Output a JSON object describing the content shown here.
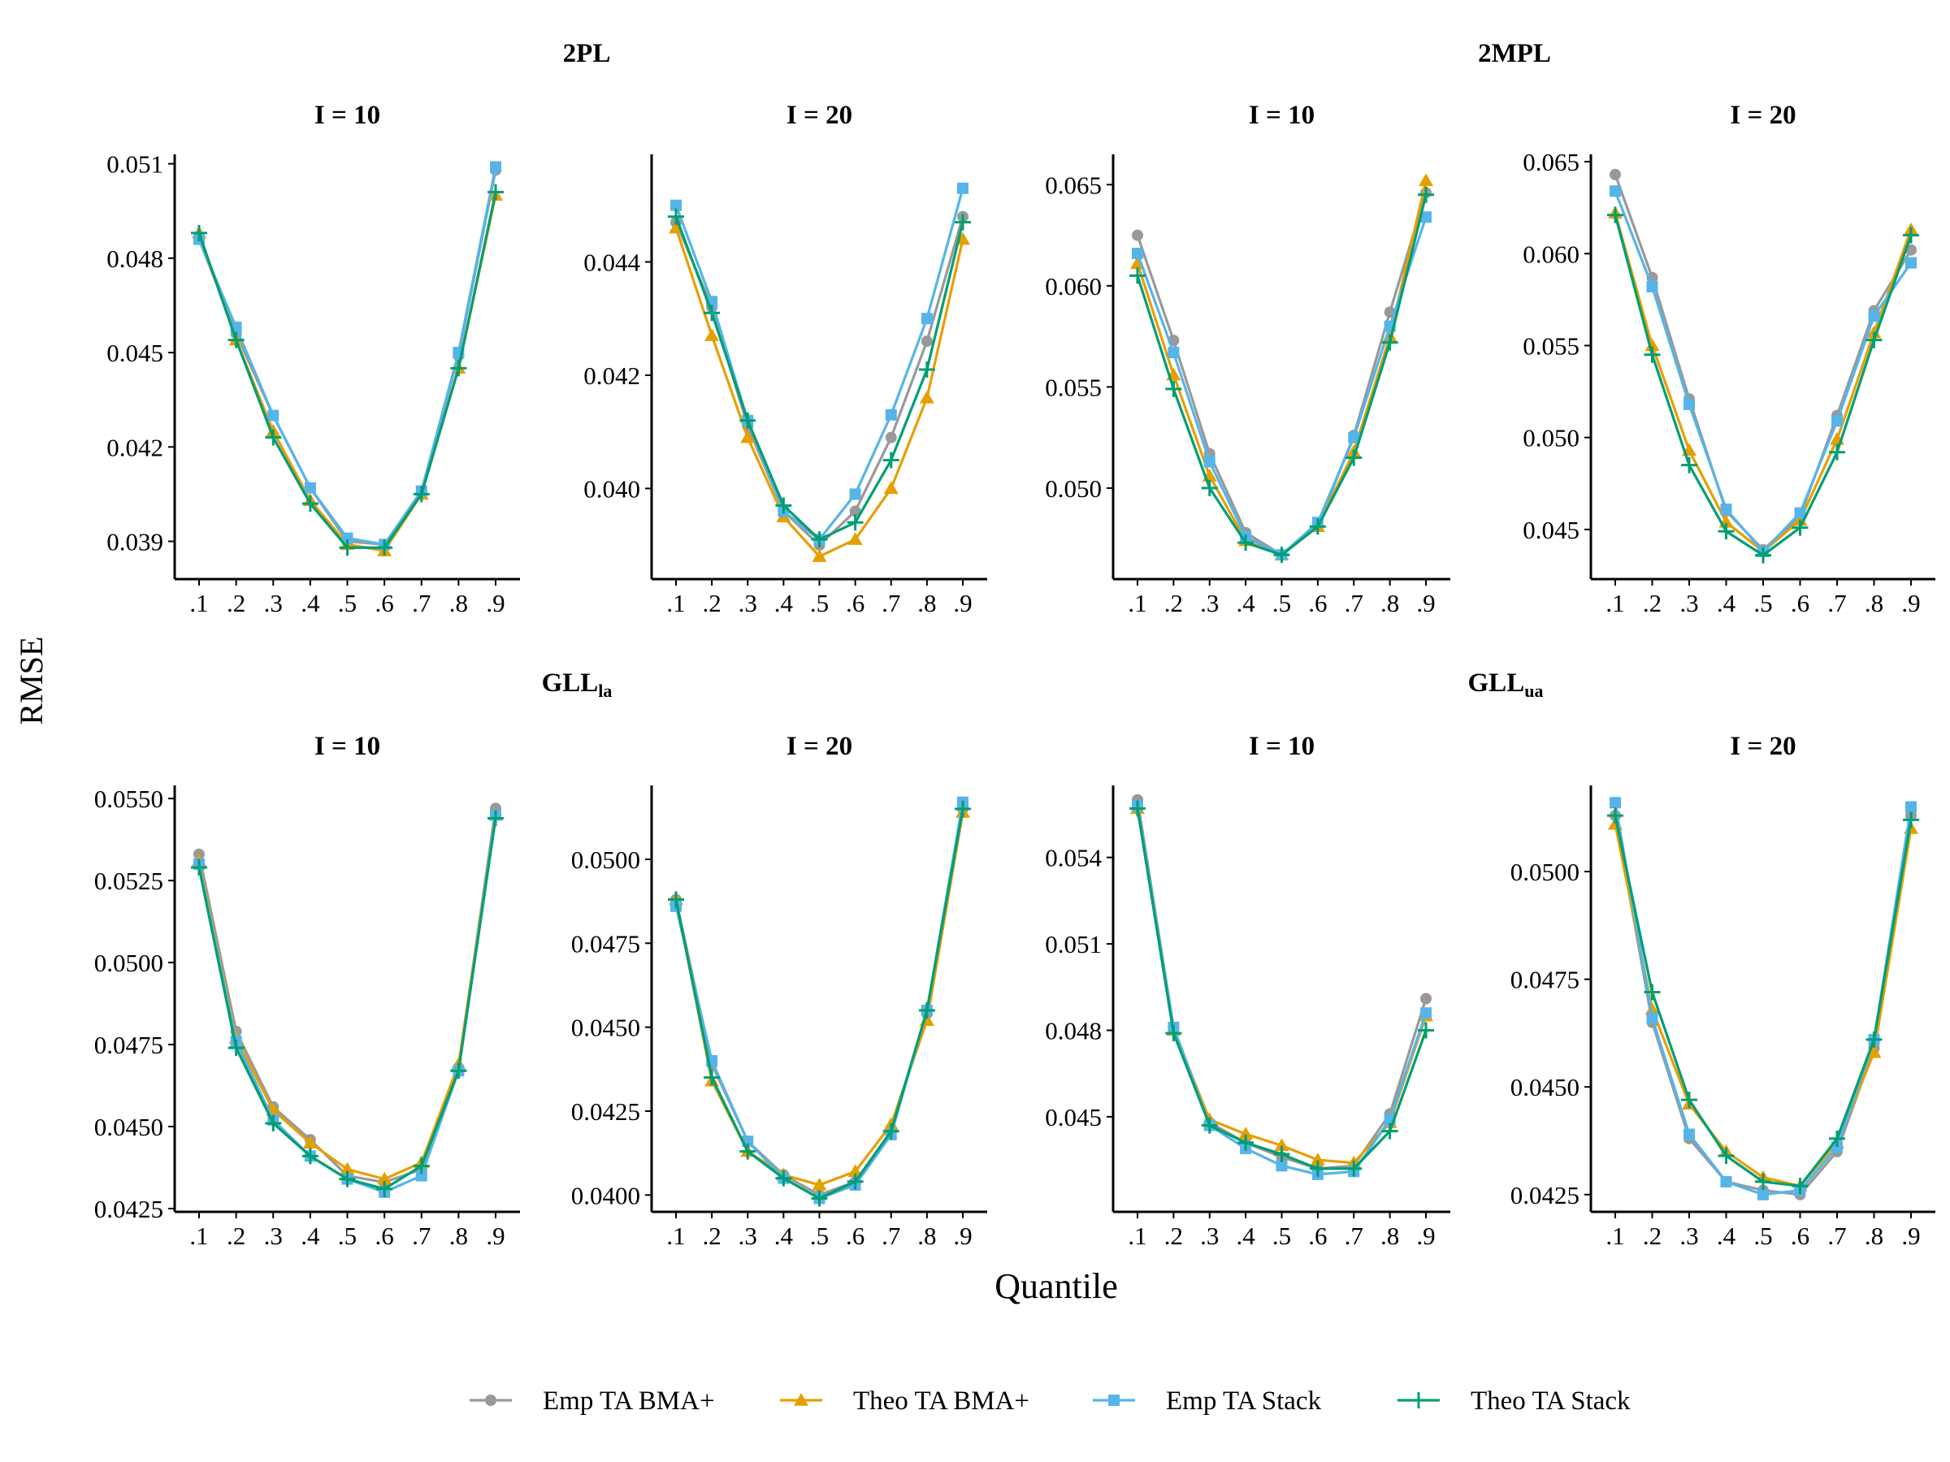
{
  "figure": {
    "ylabel": "RMSE",
    "xlabel": "Quantile",
    "group_titles": [
      {
        "main": "2PL",
        "sub": ""
      },
      {
        "main": "2MPL",
        "sub": ""
      },
      {
        "main": "GLL",
        "sub": "la"
      },
      {
        "main": "GLL",
        "sub": "ua"
      }
    ],
    "legend": [
      {
        "label": "Emp TA BMA+",
        "color": "#999999",
        "marker": "circle"
      },
      {
        "label": "Theo TA BMA+",
        "color": "#E69F00",
        "marker": "triangle"
      },
      {
        "label": "Emp TA Stack",
        "color": "#56B4E9",
        "marker": "square"
      },
      {
        "label": "Theo TA Stack",
        "color": "#009E73",
        "marker": "plus"
      }
    ]
  },
  "chart_data": [
    {
      "type": "line",
      "group": "2PL",
      "title": "I = 10",
      "categories": [
        ".1",
        ".2",
        ".3",
        ".4",
        ".5",
        ".6",
        ".7",
        ".8",
        ".9"
      ],
      "ylim": [
        0.0378,
        0.0513
      ],
      "yticks": [
        "0.039",
        "0.042",
        "0.045",
        "0.048",
        "0.051"
      ],
      "series": [
        {
          "name": "Emp TA BMA+",
          "values": [
            0.0486,
            0.0456,
            0.043,
            0.0407,
            0.039,
            0.0389,
            0.0406,
            0.0449,
            0.0508
          ]
        },
        {
          "name": "Theo TA BMA+",
          "values": [
            0.0488,
            0.0454,
            0.0425,
            0.0403,
            0.0389,
            0.0387,
            0.0405,
            0.0445,
            0.05
          ]
        },
        {
          "name": "Emp TA Stack",
          "values": [
            0.0486,
            0.0458,
            0.043,
            0.0407,
            0.0391,
            0.0389,
            0.0406,
            0.045,
            0.0509
          ]
        },
        {
          "name": "Theo TA Stack",
          "values": [
            0.0488,
            0.0454,
            0.0423,
            0.0402,
            0.0388,
            0.0388,
            0.0405,
            0.0445,
            0.0501
          ]
        }
      ]
    },
    {
      "type": "line",
      "group": "2PL",
      "title": "I = 20",
      "categories": [
        ".1",
        ".2",
        ".3",
        ".4",
        ".5",
        ".6",
        ".7",
        ".8",
        ".9"
      ],
      "ylim": [
        0.0384,
        0.0459
      ],
      "yticks": [
        "0.040",
        "0.042",
        "0.044"
      ],
      "series": [
        {
          "name": "Emp TA BMA+",
          "values": [
            0.0447,
            0.0432,
            0.0411,
            0.0396,
            0.039,
            0.0396,
            0.0409,
            0.0426,
            0.0448
          ]
        },
        {
          "name": "Theo TA BMA+",
          "values": [
            0.0446,
            0.0427,
            0.0409,
            0.0395,
            0.0388,
            0.0391,
            0.04,
            0.0416,
            0.0444
          ]
        },
        {
          "name": "Emp TA Stack",
          "values": [
            0.045,
            0.0433,
            0.0412,
            0.0396,
            0.0391,
            0.0399,
            0.0413,
            0.043,
            0.0453
          ]
        },
        {
          "name": "Theo TA Stack",
          "values": [
            0.0448,
            0.0431,
            0.0412,
            0.0397,
            0.0391,
            0.0394,
            0.0405,
            0.0421,
            0.0447
          ]
        }
      ]
    },
    {
      "type": "line",
      "group": "2MPL",
      "title": "I = 10",
      "categories": [
        ".1",
        ".2",
        ".3",
        ".4",
        ".5",
        ".6",
        ".7",
        ".8",
        ".9"
      ],
      "ylim": [
        0.0455,
        0.0665
      ],
      "yticks": [
        "0.050",
        "0.055",
        "0.060",
        "0.065"
      ],
      "series": [
        {
          "name": "Emp TA BMA+",
          "values": [
            0.0625,
            0.0573,
            0.0517,
            0.0478,
            0.0467,
            0.0481,
            0.0526,
            0.0587,
            0.0646
          ]
        },
        {
          "name": "Theo TA BMA+",
          "values": [
            0.0611,
            0.0556,
            0.0506,
            0.0474,
            0.0467,
            0.0481,
            0.0518,
            0.0575,
            0.0652
          ]
        },
        {
          "name": "Emp TA Stack",
          "values": [
            0.0616,
            0.0567,
            0.0513,
            0.0476,
            0.0467,
            0.0483,
            0.0525,
            0.058,
            0.0634
          ]
        },
        {
          "name": "Theo TA Stack",
          "values": [
            0.0605,
            0.0549,
            0.05,
            0.0473,
            0.0467,
            0.0481,
            0.0515,
            0.0572,
            0.0645
          ]
        }
      ]
    },
    {
      "type": "line",
      "group": "2MPL",
      "title": "I = 20",
      "categories": [
        ".1",
        ".2",
        ".3",
        ".4",
        ".5",
        ".6",
        ".7",
        ".8",
        ".9"
      ],
      "ylim": [
        0.0423,
        0.0654
      ],
      "yticks": [
        "0.045",
        "0.050",
        "0.055",
        "0.060",
        "0.065"
      ],
      "series": [
        {
          "name": "Emp TA BMA+",
          "values": [
            0.0643,
            0.0587,
            0.0521,
            0.046,
            0.0439,
            0.0457,
            0.0512,
            0.0569,
            0.0602
          ]
        },
        {
          "name": "Theo TA BMA+",
          "values": [
            0.0622,
            0.055,
            0.0493,
            0.0454,
            0.0438,
            0.0455,
            0.0499,
            0.0557,
            0.0613
          ]
        },
        {
          "name": "Emp TA Stack",
          "values": [
            0.0634,
            0.0582,
            0.0518,
            0.0461,
            0.0438,
            0.0459,
            0.0509,
            0.0566,
            0.0595
          ]
        },
        {
          "name": "Theo TA Stack",
          "values": [
            0.0621,
            0.0545,
            0.0485,
            0.0449,
            0.0436,
            0.0451,
            0.0492,
            0.0553,
            0.061
          ]
        }
      ]
    },
    {
      "type": "line",
      "group": "GLL la",
      "title": "I = 10",
      "categories": [
        ".1",
        ".2",
        ".3",
        ".4",
        ".5",
        ".6",
        ".7",
        ".8",
        ".9"
      ],
      "ylim": [
        0.0424,
        0.0554
      ],
      "yticks": [
        "0.0425",
        "0.0450",
        "0.0475",
        "0.0500",
        "0.0525",
        "0.0550"
      ],
      "series": [
        {
          "name": "Emp TA BMA+",
          "values": [
            0.0533,
            0.0479,
            0.0456,
            0.0446,
            0.0435,
            0.0433,
            0.0437,
            0.0468,
            0.0547
          ]
        },
        {
          "name": "Theo TA BMA+",
          "values": [
            0.0531,
            0.0477,
            0.0455,
            0.0445,
            0.0437,
            0.0434,
            0.0439,
            0.0469,
            0.0545
          ]
        },
        {
          "name": "Emp TA Stack",
          "values": [
            0.053,
            0.0476,
            0.0452,
            0.0441,
            0.0434,
            0.043,
            0.0435,
            0.0467,
            0.0545
          ]
        },
        {
          "name": "Theo TA Stack",
          "values": [
            0.0529,
            0.0474,
            0.0451,
            0.0441,
            0.0434,
            0.0431,
            0.0438,
            0.0467,
            0.0544
          ]
        }
      ]
    },
    {
      "type": "line",
      "group": "GLL la",
      "title": "I = 20",
      "categories": [
        ".1",
        ".2",
        ".3",
        ".4",
        ".5",
        ".6",
        ".7",
        ".8",
        ".9"
      ],
      "ylim": [
        0.0395,
        0.0522
      ],
      "yticks": [
        "0.0400",
        "0.0425",
        "0.0450",
        "0.0475",
        "0.0500"
      ],
      "series": [
        {
          "name": "Emp TA BMA+",
          "values": [
            0.0488,
            0.0439,
            0.0416,
            0.0406,
            0.04,
            0.0404,
            0.0419,
            0.0454,
            0.0515
          ]
        },
        {
          "name": "Theo TA BMA+",
          "values": [
            0.0488,
            0.0434,
            0.0413,
            0.0406,
            0.0403,
            0.0407,
            0.0421,
            0.0452,
            0.0514
          ]
        },
        {
          "name": "Emp TA Stack",
          "values": [
            0.0486,
            0.044,
            0.0416,
            0.0405,
            0.0399,
            0.0403,
            0.0418,
            0.0455,
            0.0517
          ]
        },
        {
          "name": "Theo TA Stack",
          "values": [
            0.0488,
            0.0435,
            0.0413,
            0.0405,
            0.0399,
            0.0404,
            0.0419,
            0.0455,
            0.0515
          ]
        }
      ]
    },
    {
      "type": "line",
      "group": "GLL ua",
      "title": "I = 10",
      "categories": [
        ".1",
        ".2",
        ".3",
        ".4",
        ".5",
        ".6",
        ".7",
        ".8",
        ".9"
      ],
      "ylim": [
        0.0417,
        0.0565
      ],
      "yticks": [
        "0.045",
        "0.048",
        "0.051",
        "0.054"
      ],
      "series": [
        {
          "name": "Emp TA BMA+",
          "values": [
            0.056,
            0.0481,
            0.0448,
            0.0441,
            0.0436,
            0.0432,
            0.0433,
            0.0451,
            0.0491
          ]
        },
        {
          "name": "Theo TA BMA+",
          "values": [
            0.0557,
            0.048,
            0.0449,
            0.0444,
            0.044,
            0.0435,
            0.0434,
            0.0448,
            0.0485
          ]
        },
        {
          "name": "Emp TA Stack",
          "values": [
            0.0558,
            0.0481,
            0.0447,
            0.0439,
            0.0433,
            0.043,
            0.0431,
            0.0449,
            0.0486
          ]
        },
        {
          "name": "Theo TA Stack",
          "values": [
            0.0557,
            0.0479,
            0.0447,
            0.0441,
            0.0437,
            0.0432,
            0.0432,
            0.0445,
            0.048
          ]
        }
      ]
    },
    {
      "type": "line",
      "group": "GLL ua",
      "title": "I = 20",
      "categories": [
        ".1",
        ".2",
        ".3",
        ".4",
        ".5",
        ".6",
        ".7",
        ".8",
        ".9"
      ],
      "ylim": [
        0.0421,
        0.052
      ],
      "yticks": [
        "0.0425",
        "0.0450",
        "0.0475",
        "0.0500"
      ],
      "series": [
        {
          "name": "Emp TA BMA+",
          "values": [
            0.0513,
            0.0465,
            0.0438,
            0.0428,
            0.0426,
            0.0425,
            0.0435,
            0.0459,
            0.0513
          ]
        },
        {
          "name": "Theo TA BMA+",
          "values": [
            0.0511,
            0.0468,
            0.0446,
            0.0435,
            0.0429,
            0.0427,
            0.0437,
            0.0458,
            0.051
          ]
        },
        {
          "name": "Emp TA Stack",
          "values": [
            0.0516,
            0.0466,
            0.0439,
            0.0428,
            0.0425,
            0.0426,
            0.0436,
            0.0461,
            0.0515
          ]
        },
        {
          "name": "Theo TA Stack",
          "values": [
            0.0513,
            0.0472,
            0.0447,
            0.0434,
            0.0428,
            0.0427,
            0.0438,
            0.0461,
            0.0512
          ]
        }
      ]
    }
  ]
}
